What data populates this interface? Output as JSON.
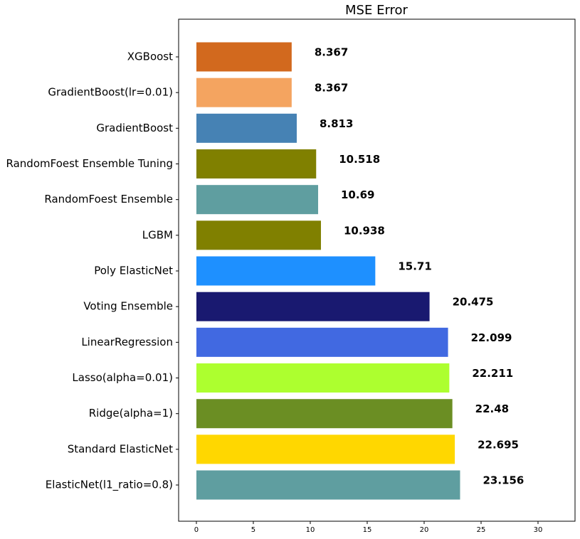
{
  "chart_data": {
    "type": "barh",
    "title": "MSE Error",
    "categories": [
      "XGBoost",
      "GradientBoost(lr=0.01)",
      "GradientBoost",
      "RandomFoest Ensemble Tuning",
      "RandomFoest Ensemble",
      "LGBM",
      "Poly ElasticNet",
      "Voting Ensemble",
      "LinearRegression",
      "Lasso(alpha=0.01)",
      "Ridge(alpha=1)",
      "Standard ElasticNet",
      "ElasticNet(l1_ratio=0.8)"
    ],
    "values": [
      8.367,
      8.367,
      8.813,
      10.518,
      10.69,
      10.938,
      15.71,
      20.475,
      22.099,
      22.211,
      22.48,
      22.695,
      23.156
    ],
    "colors": [
      "#d2691e",
      "#f4a460",
      "#4682b4",
      "#808000",
      "#5f9ea0",
      "#808000",
      "#1e90ff",
      "#191970",
      "#4169e1",
      "#adff2f",
      "#6b8e23",
      "#ffd700",
      "#5f9ea0"
    ],
    "xlim": [
      -1.56,
      33.25
    ],
    "xticks": [
      0,
      5,
      10,
      15,
      20,
      25,
      30
    ]
  }
}
